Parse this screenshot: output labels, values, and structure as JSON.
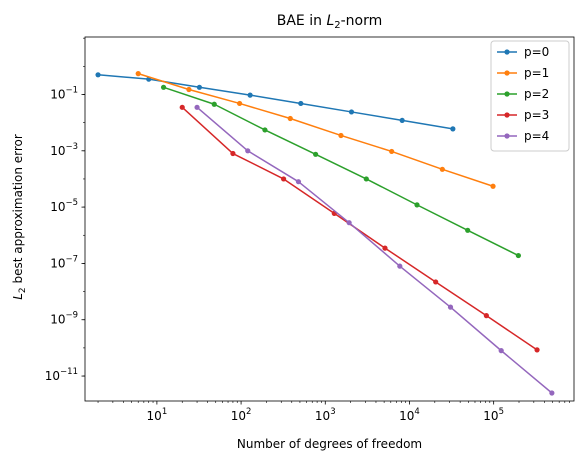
{
  "chart_data": {
    "type": "line",
    "title_main": "BAE in ",
    "title_math_base": "L",
    "title_math_sub": "2",
    "title_rest": "-norm",
    "xlabel": "Number of degrees of freedom",
    "ylabel_math_base": "L",
    "ylabel_math_sub": "2",
    "ylabel_rest": " best approximation error",
    "x_scale": "log",
    "y_scale": "log",
    "xlim": [
      1.4,
      900000
    ],
    "ylim": [
      1.3e-12,
      11
    ],
    "x_ticks": [
      {
        "base": "10",
        "exp": "1",
        "value": 10
      },
      {
        "base": "10",
        "exp": "2",
        "value": 100
      },
      {
        "base": "10",
        "exp": "3",
        "value": 1000
      },
      {
        "base": "10",
        "exp": "4",
        "value": 10000
      },
      {
        "base": "10",
        "exp": "5",
        "value": 100000
      }
    ],
    "y_ticks": [
      {
        "base": "10",
        "exp": "−1",
        "value": 0.1
      },
      {
        "base": "10",
        "exp": "−3",
        "value": 0.001
      },
      {
        "base": "10",
        "exp": "−5",
        "value": 1e-05
      },
      {
        "base": "10",
        "exp": "−7",
        "value": 1e-07
      },
      {
        "base": "10",
        "exp": "−9",
        "value": 1e-09
      },
      {
        "base": "10",
        "exp": "−11",
        "value": 1e-11
      }
    ],
    "grid": false,
    "legend_position": "upper right",
    "series": [
      {
        "name": "p=0",
        "color": "#1f77b4",
        "x": [
          2,
          8,
          32,
          128,
          512,
          2048,
          8192,
          32768
        ],
        "y": [
          0.5,
          0.35,
          0.18,
          0.095,
          0.048,
          0.024,
          0.012,
          0.006
        ]
      },
      {
        "name": "p=1",
        "color": "#ff7f0e",
        "x": [
          6,
          24,
          96,
          384,
          1536,
          6144,
          24576,
          98304
        ],
        "y": [
          0.55,
          0.15,
          0.048,
          0.014,
          0.0035,
          0.00095,
          0.00022,
          5.5e-05
        ]
      },
      {
        "name": "p=2",
        "color": "#2ca02c",
        "x": [
          12,
          48,
          192,
          768,
          3072,
          12288,
          49152,
          196608
        ],
        "y": [
          0.18,
          0.045,
          0.0055,
          0.00075,
          0.0001,
          1.2e-05,
          1.5e-06,
          1.9e-07
        ]
      },
      {
        "name": "p=3",
        "color": "#d62728",
        "x": [
          20,
          80,
          320,
          1280,
          5120,
          20480,
          81920,
          327680
        ],
        "y": [
          0.035,
          0.0008,
          0.0001,
          6e-06,
          3.5e-07,
          2.2e-08,
          1.4e-09,
          8.5e-11
        ]
      },
      {
        "name": "p=4",
        "color": "#9467bd",
        "x": [
          30,
          120,
          480,
          1920,
          7680,
          30720,
          122880,
          491520
        ],
        "y": [
          0.035,
          0.001,
          8e-05,
          2.8e-06,
          8e-08,
          2.8e-09,
          8e-11,
          2.5e-12
        ]
      }
    ]
  }
}
